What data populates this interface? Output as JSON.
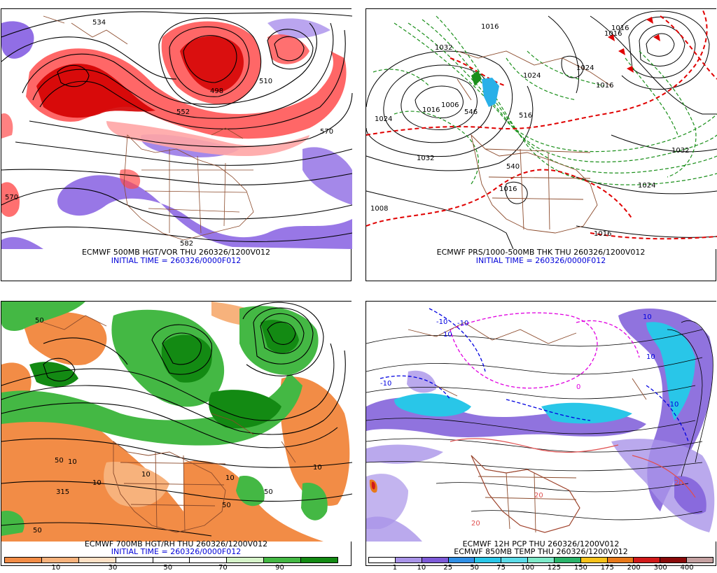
{
  "panels": [
    {
      "caption1": "ECMWF 500MB HGT/VOR THU 260326/1200V012",
      "caption2": "INITIAL TIME = 260326/0000F012",
      "contour_labels": [
        "534",
        "510",
        "498",
        "552",
        "570",
        "570",
        "582"
      ],
      "colors": {
        "vort_high": "#d40000",
        "vort_mid": "#ff4c4c",
        "vort_low": "#ffa5a5",
        "vort_neg": "#7e55e0"
      }
    },
    {
      "caption1": "ECMWF PRS/1000-500MB THK THU 260326/1200V012",
      "caption2": "INITIAL TIME = 260326/0000F012",
      "contour_labels": [
        "1016",
        "1016",
        "1032",
        "1024",
        "1016",
        "1006",
        "1024",
        "1032",
        "1024",
        "1032",
        "1024",
        "1016",
        "1008",
        "1016",
        "1016",
        "1016",
        "546",
        "516",
        "540"
      ],
      "colors": {
        "isobar": "#000000",
        "thickness_cold": "#1a8f1a",
        "thickness_ref": "#e00000",
        "borders": "#8b4a2b"
      }
    },
    {
      "caption1": "ECMWF 700MB HGT/RH THU 260326/1200V012",
      "caption2": "INITIAL TIME = 260326/0000F012",
      "contour_labels": [
        "50",
        "10",
        "10",
        "50",
        "10",
        "50",
        "10",
        "50",
        "10",
        "50",
        "315"
      ],
      "scale": {
        "ticks": [
          "10",
          "30",
          "50",
          "70",
          "90"
        ],
        "colors": [
          "#f28c46",
          "#f7b27c",
          "#fde0c4",
          "#ffffff",
          "#ffffff",
          "#ffffff",
          "#d6f3c9",
          "#44b844",
          "#138a13"
        ]
      }
    },
    {
      "caption1": "ECMWF 12H PCP THU 260326/1200V012",
      "caption2": "ECMWF 850MB TEMP THU 260326/1200V012",
      "contour_labels": [
        "-10",
        "-10",
        "-10",
        "10",
        "10",
        "-10",
        "0",
        "10",
        "20",
        "20",
        "20"
      ],
      "scale": {
        "ticks": [
          "1",
          "10",
          "25",
          "50",
          "75",
          "100",
          "125",
          "150",
          "175",
          "200",
          "300",
          "400"
        ],
        "colors": [
          "#ffffff",
          "#a994e8",
          "#7d5ad8",
          "#2f8fe6",
          "#29c6e8",
          "#5bdbe8",
          "#7eeac9",
          "#2ab36a",
          "#f7c21a",
          "#e8791a",
          "#d11a1a",
          "#8a0a0a",
          "#c4a0a0"
        ]
      }
    }
  ]
}
